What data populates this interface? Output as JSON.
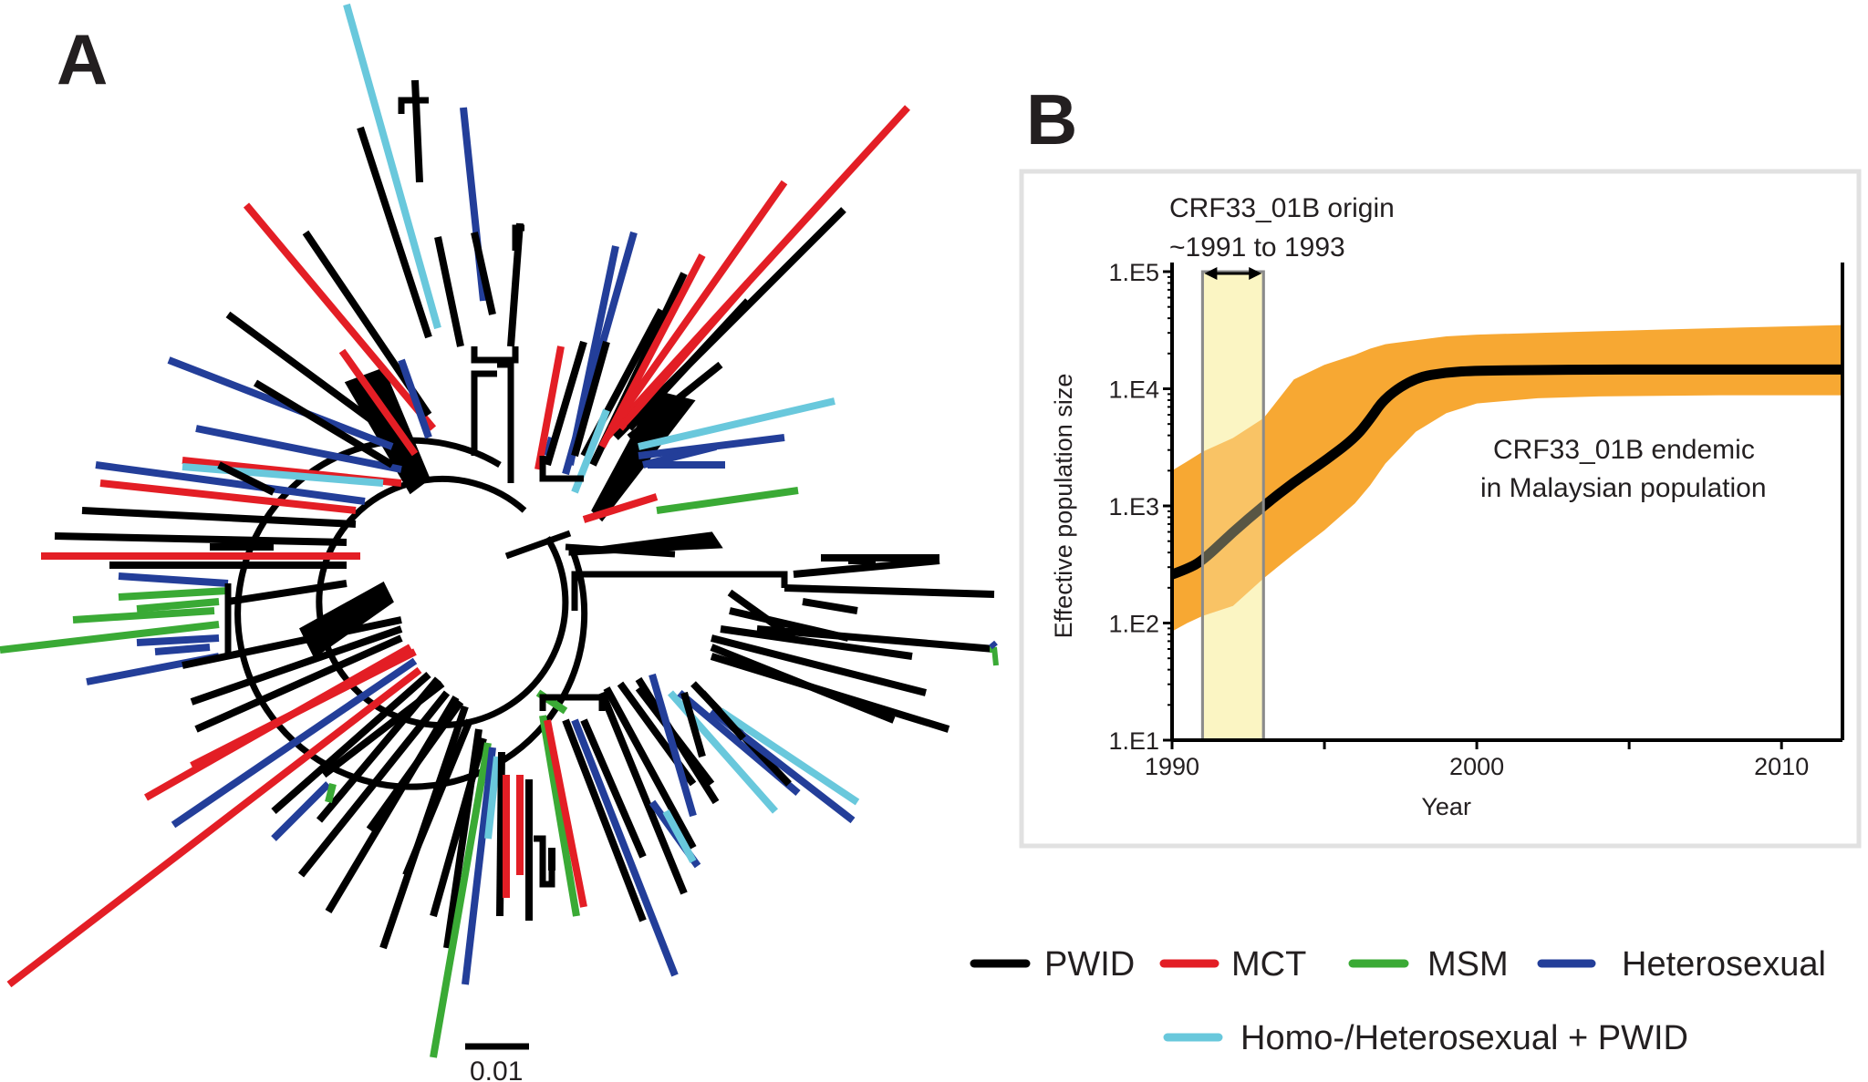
{
  "panel_a": {
    "letter": "A",
    "scale_bar_label": "0.01"
  },
  "panel_b": {
    "letter": "B"
  },
  "legend": {
    "items": [
      {
        "label": "PWID",
        "color": "#000000"
      },
      {
        "label": "MCT",
        "color": "#e31e25"
      },
      {
        "label": "MSM",
        "color": "#3aaa35"
      },
      {
        "label": "Heterosexual",
        "color": "#233e99"
      },
      {
        "label": "Homo-/Heterosexual + PWID",
        "color": "#69c8dc"
      }
    ]
  },
  "chart_data": [
    {
      "type": "tree",
      "panel": "A",
      "group_colors": {
        "PWID": "#000000",
        "MCT": "#e31e25",
        "MSM": "#3aaa35",
        "Heterosexual": "#233e99",
        "Homo-/Heterosexual + PWID": "#69c8dc"
      },
      "scale_bar": "0.01"
    },
    {
      "type": "line",
      "panel": "B",
      "xlabel": "Year",
      "ylabel": "Effective population size",
      "xlim": [
        1990,
        2012
      ],
      "x_ticks": [
        "1990",
        "2000",
        "2010"
      ],
      "y_scale": "log",
      "ylim": [
        10,
        100000
      ],
      "y_ticks": [
        "1.E1",
        "1.E2",
        "1.E3",
        "1.E4",
        "1.E5"
      ],
      "y_tick_values": [
        10,
        100,
        1000,
        10000,
        100000
      ],
      "series": [
        {
          "x": [
            1990,
            1990.5,
            1991,
            1992,
            1993,
            1994,
            1995,
            1996,
            1996.5,
            1997,
            1998,
            1999,
            2000,
            2002,
            2004,
            2006,
            2008,
            2010,
            2012
          ],
          "median": [
            260,
            290,
            340,
            600,
            1000,
            1600,
            2400,
            3800,
            5500,
            8500,
            12500,
            13800,
            14300,
            14500,
            14600,
            14600,
            14600,
            14600,
            14600
          ],
          "lower": [
            85,
            100,
            115,
            140,
            240,
            390,
            620,
            1050,
            1500,
            2300,
            4300,
            6200,
            7500,
            8300,
            8600,
            8700,
            8800,
            8800,
            8800
          ],
          "upper": [
            2000,
            2400,
            2900,
            3800,
            5600,
            12000,
            16000,
            19500,
            22000,
            24000,
            26000,
            28000,
            29000,
            30000,
            31000,
            32000,
            33000,
            34000,
            35000
          ],
          "band_color": "#f7a833",
          "line_color": "#000000"
        }
      ],
      "highlight": {
        "x_range": [
          1991,
          1993
        ],
        "color": "#fbf5c4",
        "label_line1": "CRF33_01B origin",
        "label_line2": "~1991 to 1993"
      },
      "annotation": {
        "line1": "CRF33_01B endemic",
        "line2": "in Malaysian population"
      }
    }
  ]
}
